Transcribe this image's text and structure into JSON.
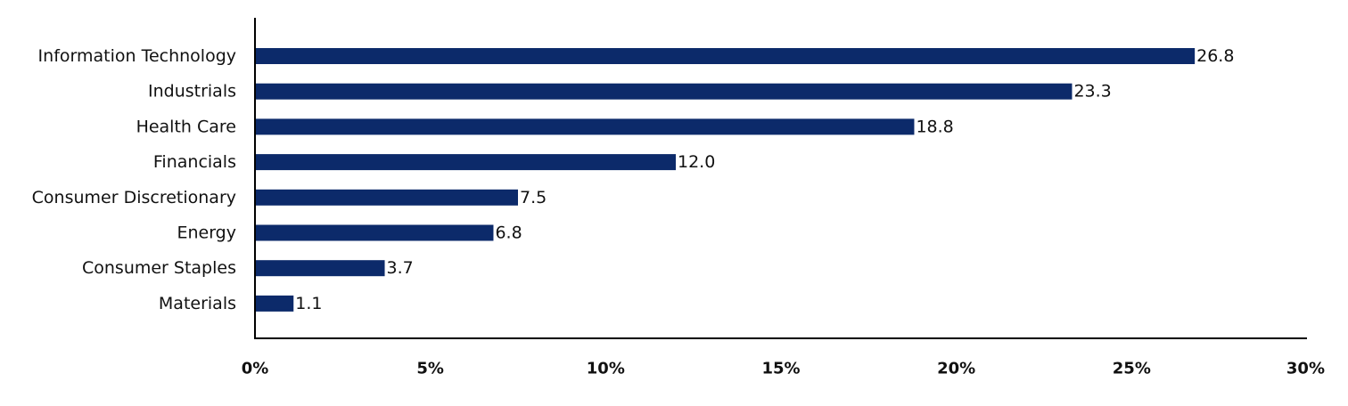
{
  "chart_data": {
    "type": "bar",
    "orientation": "horizontal",
    "categories": [
      "Information Technology",
      "Industrials",
      "Health Care",
      "Financials",
      "Consumer Discretionary",
      "Energy",
      "Consumer Staples",
      "Materials"
    ],
    "values": [
      26.8,
      23.3,
      18.8,
      12.0,
      7.5,
      6.8,
      3.7,
      1.1
    ],
    "value_labels": [
      "26.8",
      "23.3",
      "18.8",
      "12.0",
      "7.5",
      "6.8",
      "3.7",
      "1.1"
    ],
    "x_ticks": [
      "0%",
      "5%",
      "10%",
      "15%",
      "20%",
      "25%",
      "30%"
    ],
    "xlim": [
      0,
      30
    ],
    "title": "",
    "xlabel": "",
    "ylabel": "",
    "grid": false,
    "legend": "none",
    "bar_color": "#0c2a6a"
  }
}
